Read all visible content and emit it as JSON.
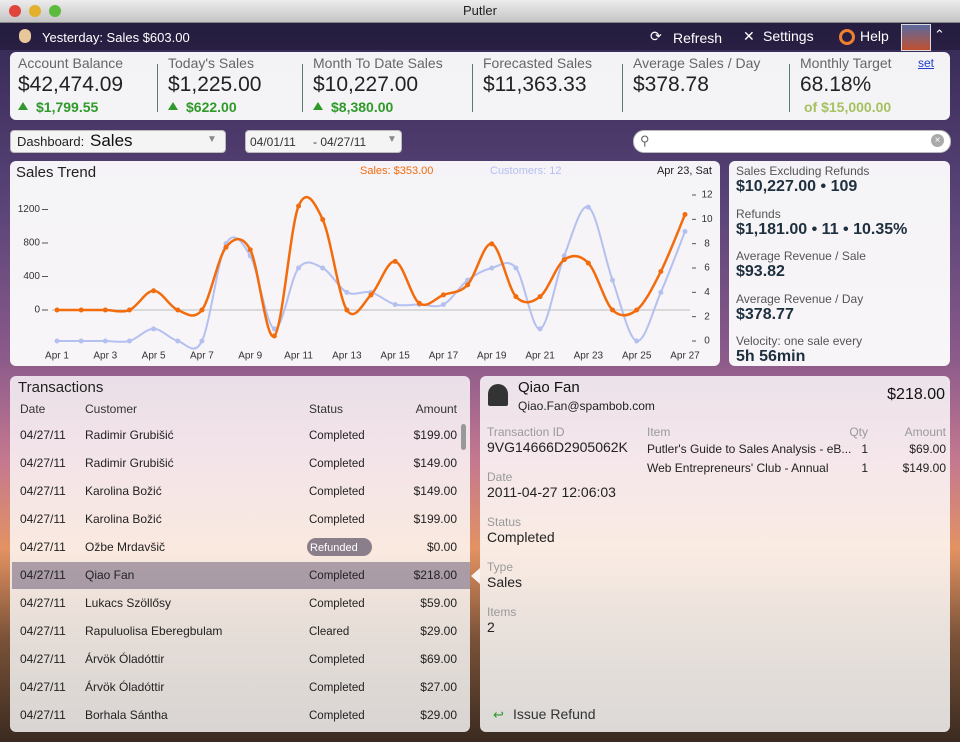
{
  "window": {
    "title": "Putler"
  },
  "toolbar": {
    "yesterday": "Yesterday: Sales $603.00",
    "refresh": "Refresh",
    "settings": "Settings",
    "help": "Help"
  },
  "kpis": [
    {
      "label": "Account Balance",
      "value": "$42,474.09",
      "change": "$1,799.55"
    },
    {
      "label": "Today's Sales",
      "value": "$1,225.00",
      "change": "$622.00"
    },
    {
      "label": "Month To Date Sales",
      "value": "$10,227.00",
      "change": "$8,380.00"
    },
    {
      "label": "Forecasted Sales",
      "value": "$11,363.33"
    },
    {
      "label": "Average Sales / Day",
      "value": "$378.78"
    },
    {
      "label": "Monthly Target",
      "value": "68.18%",
      "target": "of $15,000.00",
      "link": "set"
    }
  ],
  "filters": {
    "dashboard_label": "Dashboard:",
    "dashboard": "Sales",
    "date_from": "04/01/11",
    "date_to": "- 04/27/11"
  },
  "chart_data": {
    "type": "line",
    "title": "Sales Trend",
    "annotation": "Apr 23, Sat",
    "categories": [
      "Apr 1",
      null,
      "Apr 3",
      null,
      "Apr 5",
      null,
      "Apr 7",
      null,
      "Apr 9",
      null,
      "Apr 11",
      null,
      "Apr 13",
      null,
      "Apr 15",
      null,
      "Apr 17",
      null,
      "Apr 19",
      null,
      "Apr 21",
      null,
      "Apr 23",
      null,
      "Apr 25",
      null,
      "Apr 27"
    ],
    "series": [
      {
        "name": "Sales: $353.00",
        "color": "#f26c0d",
        "values": [
          0,
          0,
          0,
          0,
          230,
          0,
          0,
          750,
          720,
          -310,
          1240,
          1080,
          0,
          180,
          580,
          80,
          180,
          300,
          790,
          160,
          160,
          600,
          560,
          0,
          0,
          460,
          1140
        ]
      },
      {
        "name": "Customers: 12",
        "color": "#b4c0f0",
        "axis": "y2",
        "values": [
          0,
          0,
          0,
          0,
          1,
          0,
          0,
          8,
          7,
          1,
          6,
          6,
          4,
          4,
          3,
          3,
          3,
          5,
          6,
          6,
          1,
          7,
          11,
          5,
          0,
          4,
          9
        ]
      }
    ],
    "ylim": [
      -370,
      1373
    ],
    "yticks": [
      0,
      400,
      800,
      1200
    ],
    "y2lim": [
      0,
      12
    ],
    "y2ticks": [
      0,
      2,
      4,
      6,
      8,
      10,
      12
    ],
    "zero_line": true
  },
  "stats": [
    {
      "label": "Sales Excluding Refunds",
      "value": "$10,227.00 • 109"
    },
    {
      "label": "Refunds",
      "value": "$1,181.00 • 11 • 10.35%"
    },
    {
      "label": "Average Revenue / Sale",
      "value": "$93.82"
    },
    {
      "label": "Average Revenue / Day",
      "value": "$378.77"
    },
    {
      "label": "Velocity: one sale every",
      "value": "5h 56min"
    }
  ],
  "transactions": {
    "title": "Transactions",
    "columns": [
      "Date",
      "Customer",
      "Status",
      "Amount"
    ],
    "selected_row": 5,
    "rows": [
      [
        "04/27/11",
        "Radimir Grubišić",
        "Completed",
        "$199.00"
      ],
      [
        "04/27/11",
        "Radimir Grubišić",
        "Completed",
        "$149.00"
      ],
      [
        "04/27/11",
        "Karolina Božić",
        "Completed",
        "$149.00"
      ],
      [
        "04/27/11",
        "Karolina Božić",
        "Completed",
        "$199.00"
      ],
      [
        "04/27/11",
        "Ožbe Mrdavšič",
        "Refunded",
        "$0.00"
      ],
      [
        "04/27/11",
        "Qiao Fan",
        "Completed",
        "$218.00"
      ],
      [
        "04/27/11",
        "Lukacs Szöllősy",
        "Completed",
        "$59.00"
      ],
      [
        "04/27/11",
        "Rapuluolisa Eberegbulam",
        "Cleared",
        "$29.00"
      ],
      [
        "04/27/11",
        "Árvök Óladóttir",
        "Completed",
        "$69.00"
      ],
      [
        "04/27/11",
        "Árvök Óladóttir",
        "Completed",
        "$27.00"
      ],
      [
        "04/27/11",
        "Borhala Sántha",
        "Completed",
        "$29.00"
      ]
    ]
  },
  "detail": {
    "name": "Qiao Fan",
    "email": "Qiao.Fan@spambob.com",
    "amount": "$218.00",
    "fields": [
      {
        "label": "Transaction ID",
        "value": "9VG14666D2905062K"
      },
      {
        "label": "Date",
        "value": "2011-04-27 12:06:03"
      },
      {
        "label": "Status",
        "value": "Completed"
      },
      {
        "label": "Type",
        "value": "Sales"
      },
      {
        "label": "Items",
        "value": "2"
      }
    ],
    "item_columns": [
      "Item",
      "Qty",
      "Amount"
    ],
    "items": [
      [
        "Putler's Guide to Sales Analysis - eB...",
        "1",
        "$69.00"
      ],
      [
        "Web Entrepreneurs' Club - Annual",
        "1",
        "$149.00"
      ]
    ],
    "action": "Issue Refund"
  }
}
